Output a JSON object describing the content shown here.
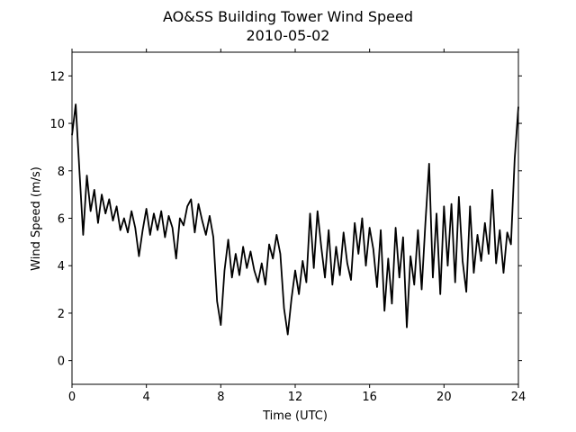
{
  "chart_data": {
    "type": "line",
    "title": "AO&SS Building Tower Wind Speed",
    "subtitle": "2010-05-02",
    "x_label": "Time (UTC)",
    "y_label": "Wind Speed (m/s)",
    "xlim": [
      0,
      24
    ],
    "xticks": [
      0,
      4,
      8,
      12,
      16,
      20,
      24
    ],
    "ylim": [
      -1,
      13
    ],
    "yticks": [
      0,
      2,
      4,
      6,
      8,
      10,
      12
    ],
    "x": [
      0,
      0.2,
      0.4,
      0.6,
      0.8,
      1,
      1.2,
      1.4,
      1.6,
      1.8,
      2,
      2.2,
      2.4,
      2.6,
      2.8,
      3,
      3.2,
      3.4,
      3.6,
      3.8,
      4,
      4.2,
      4.4,
      4.6,
      4.8,
      5,
      5.2,
      5.4,
      5.6,
      5.8,
      6,
      6.2,
      6.4,
      6.6,
      6.8,
      7,
      7.2,
      7.4,
      7.6,
      7.8,
      8,
      8.2,
      8.4,
      8.6,
      8.8,
      9,
      9.2,
      9.4,
      9.6,
      9.8,
      10,
      10.2,
      10.4,
      10.6,
      10.8,
      11,
      11.2,
      11.4,
      11.6,
      11.8,
      12,
      12.2,
      12.4,
      12.6,
      12.8,
      13,
      13.2,
      13.4,
      13.6,
      13.8,
      14,
      14.2,
      14.4,
      14.6,
      14.8,
      15,
      15.2,
      15.4,
      15.6,
      15.8,
      16,
      16.2,
      16.4,
      16.6,
      16.8,
      17,
      17.2,
      17.4,
      17.6,
      17.8,
      18,
      18.2,
      18.4,
      18.6,
      18.8,
      19,
      19.2,
      19.4,
      19.6,
      19.8,
      20,
      20.2,
      20.4,
      20.6,
      20.8,
      21,
      21.2,
      21.4,
      21.6,
      21.8,
      22,
      22.2,
      22.4,
      22.6,
      22.8,
      23,
      23.2,
      23.4,
      23.6,
      23.8,
      24
    ],
    "series": [
      {
        "color": "#000000",
        "values": [
          9.5,
          10.8,
          8,
          5.3,
          7.8,
          6.3,
          7.2,
          5.8,
          7,
          6.2,
          6.8,
          5.9,
          6.5,
          5.5,
          6,
          5.4,
          6.3,
          5.6,
          4.4,
          5.5,
          6.4,
          5.3,
          6.2,
          5.5,
          6.3,
          5.2,
          6.1,
          5.6,
          4.3,
          6,
          5.7,
          6.5,
          6.8,
          5.4,
          6.6,
          5.9,
          5.3,
          6.1,
          5.2,
          2.5,
          1.5,
          3.8,
          5.1,
          3.5,
          4.5,
          3.6,
          4.8,
          3.9,
          4.6,
          3.8,
          3.3,
          4.1,
          3.2,
          4.9,
          4.3,
          5.3,
          4.5,
          2.2,
          1.1,
          2.6,
          3.8,
          2.8,
          4.2,
          3.3,
          6.2,
          3.9,
          6.3,
          4.8,
          3.5,
          5.5,
          3.2,
          4.8,
          3.6,
          5.4,
          4.1,
          3.4,
          5.8,
          4.5,
          6,
          4,
          5.6,
          4.7,
          3.1,
          5.5,
          2.1,
          4.3,
          2.4,
          5.6,
          3.5,
          5.2,
          1.4,
          4.4,
          3.2,
          5.5,
          3,
          5.8,
          8.3,
          3.5,
          6.2,
          2.8,
          6.5,
          4,
          6.6,
          3.3,
          6.9,
          4.2,
          2.9,
          6.5,
          3.7,
          5.3,
          4.2,
          5.8,
          4.5,
          7.2,
          4.1,
          5.5,
          3.7,
          5.4,
          4.9,
          8.5,
          10.7
        ]
      }
    ]
  }
}
